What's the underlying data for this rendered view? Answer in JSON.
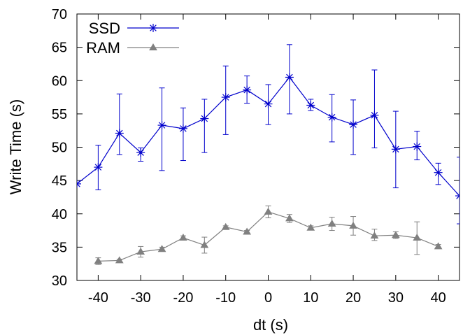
{
  "chart_data": {
    "type": "line",
    "xlabel": "dt (s)",
    "ylabel": "Write Time (s)",
    "xlim": [
      -45,
      45
    ],
    "ylim": [
      30,
      70
    ],
    "xticks": [
      -40,
      -30,
      -20,
      -10,
      0,
      10,
      20,
      30,
      40
    ],
    "yticks": [
      30,
      35,
      40,
      45,
      50,
      55,
      60,
      65,
      70
    ],
    "xtick_labels": [
      "-40",
      "-30",
      "-20",
      "-10",
      "0",
      "10",
      "20",
      "30",
      "40"
    ],
    "ytick_labels": [
      "30",
      "35",
      "40",
      "45",
      "50",
      "55",
      "60",
      "65",
      "70"
    ],
    "grid": false,
    "legend_position": "top-left",
    "series": [
      {
        "name": "SSD",
        "color": "#0000cc",
        "marker": "asterisk",
        "x": [
          -45,
          -40,
          -35,
          -30,
          -25,
          -20,
          -15,
          -10,
          -5,
          0,
          5,
          10,
          15,
          20,
          25,
          30,
          35,
          40,
          45
        ],
        "y": [
          44.5,
          47.0,
          52.1,
          49.2,
          53.3,
          52.8,
          54.3,
          57.5,
          58.6,
          56.5,
          60.5,
          56.3,
          54.5,
          53.4,
          54.8,
          49.7,
          50.1,
          46.2,
          42.7
        ],
        "err_low": [
          44.5,
          43.6,
          48.9,
          47.9,
          46.5,
          48.0,
          49.2,
          51.9,
          56.6,
          53.4,
          55.0,
          55.5,
          50.8,
          48.9,
          49.9,
          43.9,
          48.1,
          44.4,
          38.5
        ],
        "err_high": [
          44.5,
          50.3,
          58.0,
          49.9,
          58.9,
          55.9,
          57.2,
          62.2,
          60.7,
          59.4,
          65.4,
          57.2,
          57.9,
          57.1,
          61.6,
          55.4,
          52.4,
          47.6,
          48.5
        ]
      },
      {
        "name": "RAM",
        "color": "#808080",
        "marker": "triangle",
        "x": [
          -40,
          -35,
          -30,
          -25,
          -20,
          -15,
          -10,
          -5,
          0,
          5,
          10,
          15,
          20,
          25,
          30,
          35,
          40
        ],
        "y": [
          32.9,
          33.0,
          34.3,
          34.7,
          36.4,
          35.3,
          38.0,
          37.3,
          40.3,
          39.3,
          37.9,
          38.5,
          38.2,
          36.7,
          36.8,
          36.4,
          35.1
        ],
        "err_low": [
          32.4,
          32.8,
          33.5,
          34.4,
          36.1,
          34.1,
          37.8,
          37.1,
          39.4,
          38.7,
          37.6,
          37.5,
          36.8,
          36.0,
          36.3,
          33.9,
          34.8
        ],
        "err_high": [
          33.4,
          33.2,
          35.1,
          35.0,
          36.7,
          36.5,
          38.2,
          37.5,
          41.2,
          39.9,
          38.2,
          39.5,
          39.6,
          37.7,
          37.3,
          38.8,
          35.4
        ]
      }
    ]
  }
}
